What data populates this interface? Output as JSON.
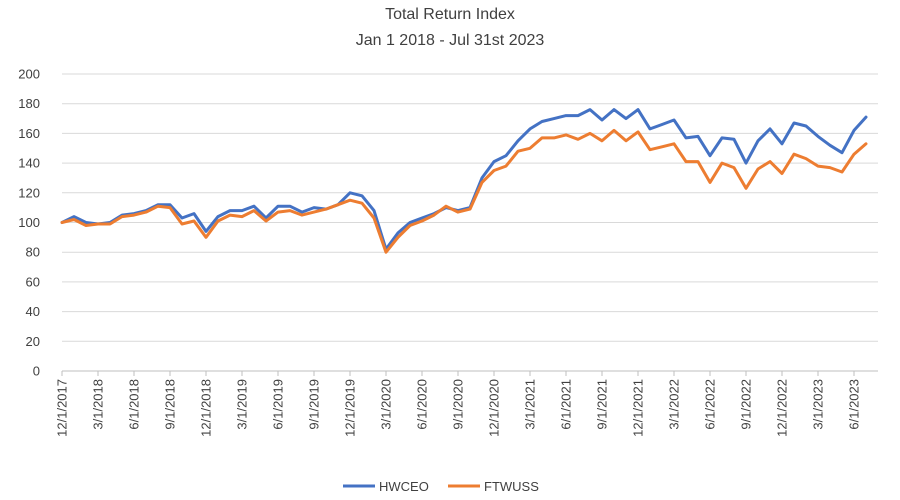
{
  "chart_data": {
    "type": "line",
    "title": "Total Return Index",
    "subtitle": "Jan 1 2018 - Jul 31st 2023",
    "xlabel": "",
    "ylabel": "",
    "ylim": [
      0,
      200
    ],
    "yticks": [
      "0",
      "20",
      "40",
      "60",
      "80",
      "100",
      "120",
      "140",
      "160",
      "180",
      "200"
    ],
    "grid": true,
    "legend_position": "bottom",
    "x_tick_labels": [
      "12/1/2017",
      "3/1/2018",
      "6/1/2018",
      "9/1/2018",
      "12/1/2018",
      "3/1/2019",
      "6/1/2019",
      "9/1/2019",
      "12/1/2019",
      "3/1/2020",
      "6/1/2020",
      "9/1/2020",
      "12/1/2020",
      "3/1/2021",
      "6/1/2021",
      "9/1/2021",
      "12/1/2021",
      "3/1/2022",
      "6/1/2022",
      "9/1/2022",
      "12/1/2022",
      "3/1/2023",
      "6/1/2023"
    ],
    "x": [
      "2017-12-01",
      "2018-01-01",
      "2018-02-01",
      "2018-03-01",
      "2018-04-01",
      "2018-05-01",
      "2018-06-01",
      "2018-07-01",
      "2018-08-01",
      "2018-09-01",
      "2018-10-01",
      "2018-11-01",
      "2018-12-01",
      "2019-01-01",
      "2019-02-01",
      "2019-03-01",
      "2019-04-01",
      "2019-05-01",
      "2019-06-01",
      "2019-07-01",
      "2019-08-01",
      "2019-09-01",
      "2019-10-01",
      "2019-11-01",
      "2019-12-01",
      "2020-01-01",
      "2020-02-01",
      "2020-03-01",
      "2020-04-01",
      "2020-05-01",
      "2020-06-01",
      "2020-07-01",
      "2020-08-01",
      "2020-09-01",
      "2020-10-01",
      "2020-11-01",
      "2020-12-01",
      "2021-01-01",
      "2021-02-01",
      "2021-03-01",
      "2021-04-01",
      "2021-05-01",
      "2021-06-01",
      "2021-07-01",
      "2021-08-01",
      "2021-09-01",
      "2021-10-01",
      "2021-11-01",
      "2021-12-01",
      "2022-01-01",
      "2022-02-01",
      "2022-03-01",
      "2022-04-01",
      "2022-05-01",
      "2022-06-01",
      "2022-07-01",
      "2022-08-01",
      "2022-09-01",
      "2022-10-01",
      "2022-11-01",
      "2022-12-01",
      "2023-01-01",
      "2023-02-01",
      "2023-03-01",
      "2023-04-01",
      "2023-05-01",
      "2023-06-01",
      "2023-07-01"
    ],
    "series": [
      {
        "name": "HWCEO",
        "color": "#4472c4",
        "values": [
          100,
          104,
          100,
          99,
          100,
          105,
          106,
          108,
          112,
          112,
          103,
          106,
          94,
          104,
          108,
          108,
          111,
          103,
          111,
          111,
          107,
          110,
          109,
          112,
          120,
          118,
          108,
          82,
          93,
          100,
          103,
          106,
          110,
          108,
          110,
          130,
          141,
          145,
          155,
          163,
          168,
          170,
          172,
          172,
          176,
          169,
          176,
          170,
          176,
          163,
          166,
          169,
          157,
          158,
          145,
          157,
          156,
          140,
          155,
          163,
          153,
          167,
          165,
          158,
          152,
          147,
          162,
          171
        ]
      },
      {
        "name": "FTWUSS",
        "color": "#ed7d31",
        "values": [
          100,
          102,
          98,
          99,
          99,
          104,
          105,
          107,
          111,
          110,
          99,
          101,
          90,
          101,
          105,
          104,
          108,
          101,
          107,
          108,
          105,
          107,
          109,
          112,
          115,
          113,
          103,
          80,
          90,
          98,
          101,
          105,
          111,
          107,
          109,
          127,
          135,
          138,
          148,
          150,
          157,
          157,
          159,
          156,
          160,
          155,
          162,
          155,
          161,
          149,
          151,
          153,
          141,
          141,
          127,
          140,
          137,
          123,
          136,
          141,
          133,
          146,
          143,
          138,
          137,
          134,
          146,
          153
        ]
      }
    ]
  }
}
